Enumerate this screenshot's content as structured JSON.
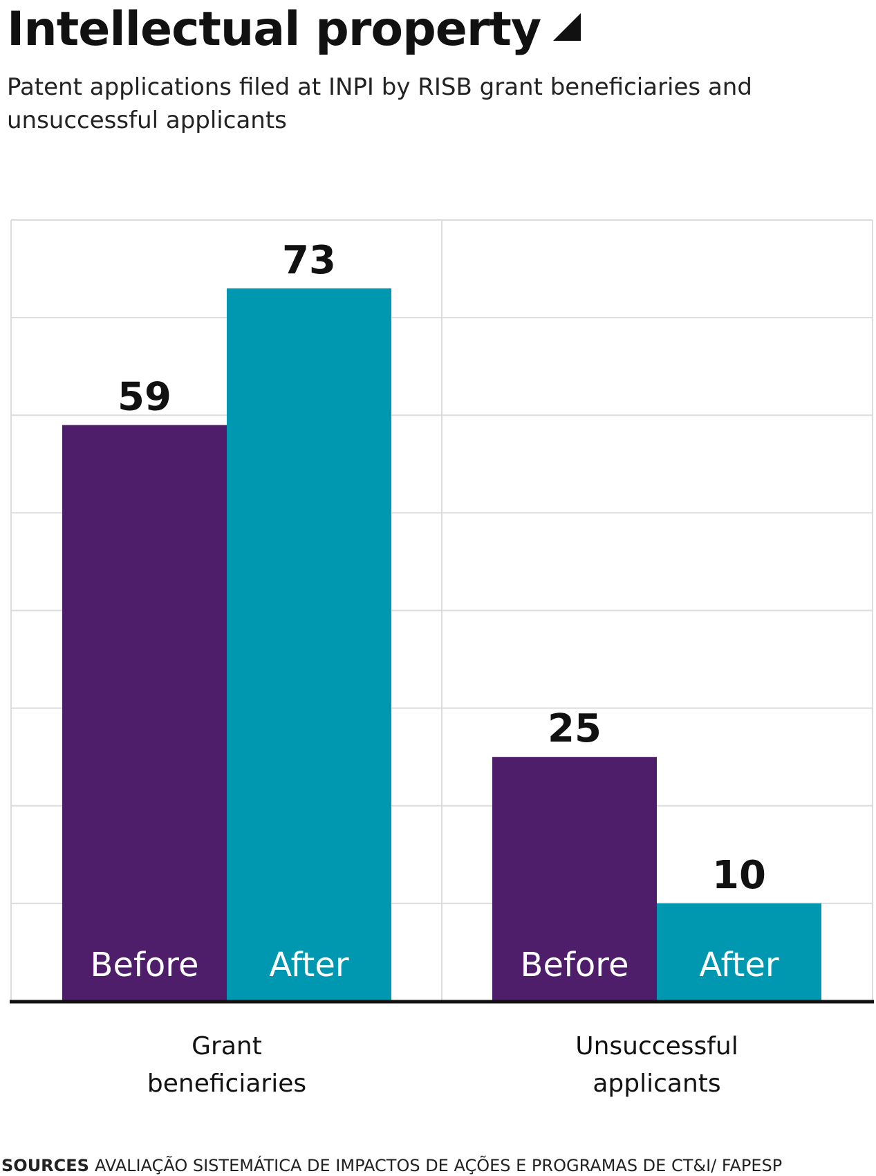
{
  "chart_data": {
    "type": "bar",
    "title": "Intellectual property",
    "subtitle": "Patent applications filed at INPI by RISB grant beneficiaries and unsuccessful applicants",
    "categories": [
      "Grant beneficiaries",
      "Unsuccessful applicants"
    ],
    "category_lines": [
      [
        "Grant",
        "beneficiaries"
      ],
      [
        "Unsuccessful",
        "applicants"
      ]
    ],
    "series": [
      {
        "name": "Before",
        "values": [
          59,
          25
        ],
        "color": "#4f1e6b"
      },
      {
        "name": "After",
        "values": [
          73,
          10
        ],
        "color": "#0097b0"
      }
    ],
    "ylim": [
      0,
      80
    ],
    "grid": true,
    "legend": "inside-bars",
    "xlabel": "",
    "ylabel": ""
  },
  "sources": {
    "label": "SOURCES",
    "text": "AVALIAÇÃO SISTEMÁTICA DE IMPACTOS DE AÇÕES E PROGRAMAS DE CT&I/ FAPESP"
  }
}
